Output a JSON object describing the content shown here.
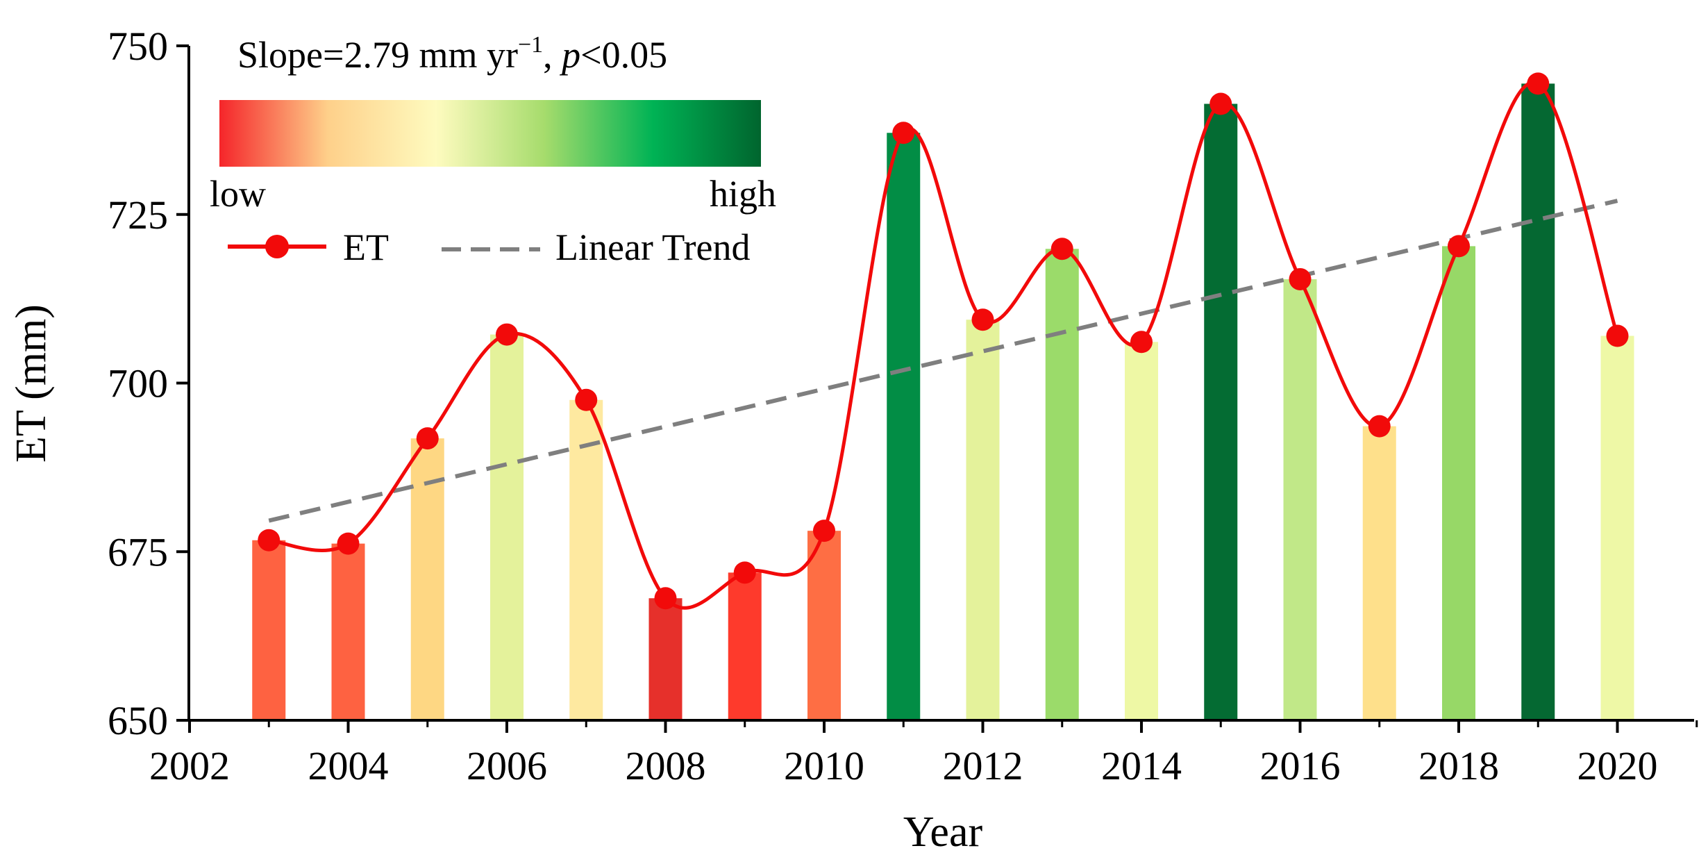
{
  "chart_data": {
    "type": "bar",
    "title": "",
    "xlabel": "Year",
    "ylabel": "ET (mm)",
    "xlim": [
      2002,
      2021
    ],
    "ylim": [
      650,
      750
    ],
    "x_ticks": [
      2002,
      2004,
      2006,
      2008,
      2010,
      2012,
      2014,
      2016,
      2018,
      2020
    ],
    "y_ticks": [
      650,
      675,
      700,
      725,
      750
    ],
    "years": [
      2003,
      2004,
      2005,
      2006,
      2007,
      2008,
      2009,
      2010,
      2011,
      2012,
      2013,
      2014,
      2015,
      2016,
      2017,
      2018,
      2019,
      2020
    ],
    "values": [
      676.7,
      676.2,
      691.8,
      707.2,
      697.5,
      668.1,
      671.9,
      678.1,
      737.1,
      709.4,
      719.9,
      706.1,
      741.4,
      715.4,
      693.6,
      720.3,
      744.4,
      707.0
    ],
    "bar_colors": [
      "#fe6241",
      "#fe6241",
      "#fed783",
      "#e4f29b",
      "#fee9a0",
      "#e6302b",
      "#fe3a2c",
      "#fe6e44",
      "#028d45",
      "#e4f29b",
      "#9bdb6a",
      "#eef8a5",
      "#046c33",
      "#c1e888",
      "#fee08b",
      "#97d867",
      "#056832",
      "#eef8a6"
    ],
    "series": [
      {
        "name": "ET",
        "type": "line-smooth-with-markers",
        "color": "#f20a0a"
      },
      {
        "name": "Linear Trend",
        "type": "dashed-line",
        "color": "#7f7f7f",
        "slope": 2.79,
        "x_range": [
          2003,
          2020
        ],
        "y_at_start": 679.6
      }
    ],
    "colorbar": {
      "low_label": "low",
      "high_label": "high",
      "stops": [
        "#f5252a",
        "#fed08a",
        "#fefbbf",
        "#a6dc6c",
        "#00b355",
        "#00652e"
      ]
    },
    "annotation": {
      "slope_text": "Slope=2.79 mm yr",
      "slope_exponent": "−1",
      "p_comma": ", ",
      "p_symbol": "p",
      "p_rest": "<0.05"
    },
    "legend": {
      "placement": "top-left",
      "entries": [
        "ET",
        "Linear Trend"
      ]
    }
  }
}
